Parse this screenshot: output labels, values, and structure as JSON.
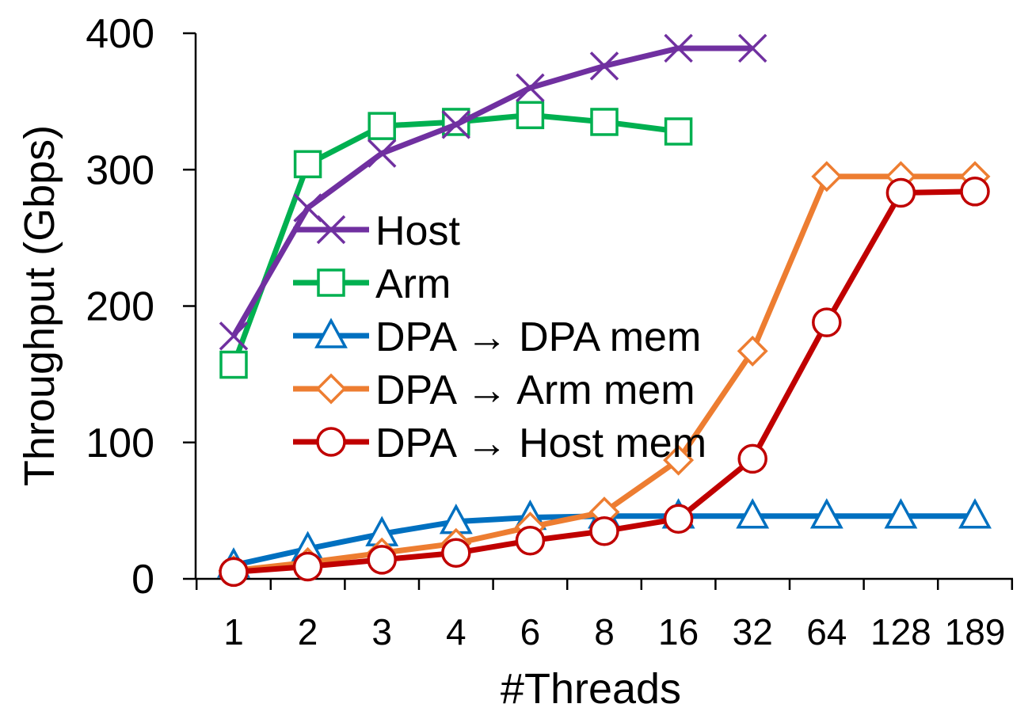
{
  "chart_data": {
    "type": "line",
    "title": "",
    "xlabel": "#Threads",
    "ylabel": "Throughput (Gbps)",
    "categories": [
      "1",
      "2",
      "3",
      "4",
      "6",
      "8",
      "16",
      "32",
      "64",
      "128",
      "189"
    ],
    "ylim": [
      0,
      400
    ],
    "yticks": [
      "0",
      "100",
      "200",
      "300",
      "400"
    ],
    "grid": false,
    "legend_position": "inside-left",
    "series": [
      {
        "name": "Host",
        "color": "#7030A0",
        "marker": "x",
        "values": [
          178,
          272,
          312,
          333,
          360,
          376,
          389,
          389,
          null,
          null,
          null
        ]
      },
      {
        "name": "Arm",
        "color": "#00B050",
        "marker": "square",
        "values": [
          157,
          304,
          332,
          335,
          340,
          335,
          328,
          null,
          null,
          null,
          null
        ]
      },
      {
        "name": "DPA → DPA mem",
        "color": "#0070C0",
        "marker": "triangle",
        "values": [
          10,
          22,
          33,
          42,
          45,
          46,
          46,
          46,
          46,
          46,
          46
        ]
      },
      {
        "name": "DPA → Arm mem",
        "color": "#ED7D31",
        "marker": "diamond",
        "values": [
          6,
          12,
          19,
          26,
          38,
          49,
          87,
          167,
          295,
          295,
          295
        ]
      },
      {
        "name": "DPA → Host mem",
        "color": "#C00000",
        "marker": "circle",
        "values": [
          5,
          9,
          14,
          19,
          28,
          35,
          44,
          88,
          188,
          283,
          284
        ]
      }
    ]
  }
}
